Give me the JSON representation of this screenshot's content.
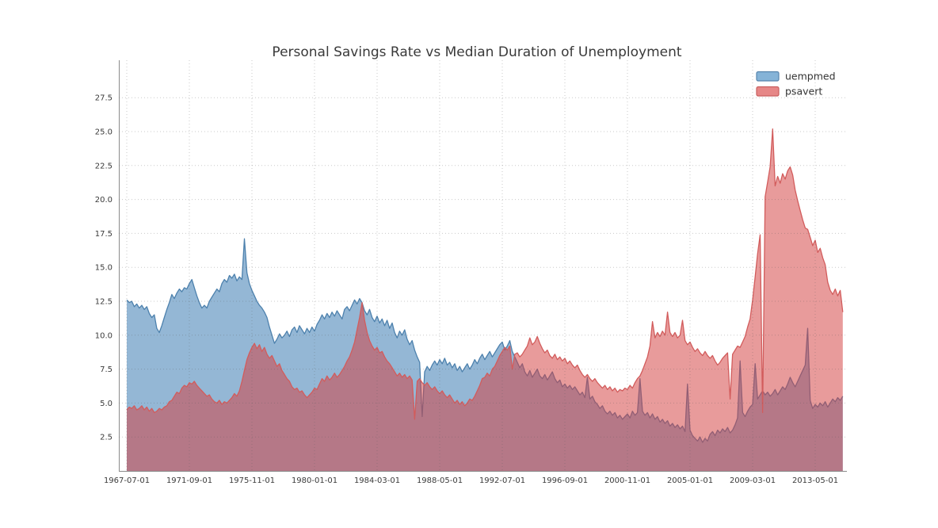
{
  "page": {
    "background": "#ffffff"
  },
  "chart_data": {
    "type": "area",
    "title": "Personal Savings Rate vs Median Duration of Unemployment",
    "xlabel": "",
    "ylabel": "",
    "x_start": "1967-07-01",
    "x_end": "2015-03-01",
    "x_step_months": 2,
    "x_tick_labels": [
      "1967-07-01",
      "1971-09-01",
      "1975-11-01",
      "1980-01-01",
      "1984-03-01",
      "1988-05-01",
      "1992-07-01",
      "1996-09-01",
      "2000-11-01",
      "2005-01-01",
      "2009-03-01",
      "2013-05-01"
    ],
    "x_tick_month_offsets": [
      0,
      50,
      100,
      150,
      200,
      250,
      300,
      350,
      400,
      450,
      500,
      550
    ],
    "y_tick_labels": [
      "2.5",
      "5.0",
      "7.5",
      "10.0",
      "12.5",
      "15.0",
      "17.5",
      "20.0",
      "22.5",
      "25.0",
      "27.5"
    ],
    "y_tick_values": [
      2.5,
      5.0,
      7.5,
      10.0,
      12.5,
      15.0,
      17.5,
      20.0,
      22.5,
      25.0,
      27.5
    ],
    "ylim": [
      0,
      30.2
    ],
    "grid": "dotted gray, both axes",
    "legend_position": "top-right",
    "colors": {
      "axis_line": "#8a8a8a",
      "grid_line": "rgba(90,90,90,0.32)",
      "title_text": "#3a3a3a",
      "tick_text": "#3a3a3a"
    },
    "legend": [
      {
        "label": "uempmed",
        "swatch_fill": "#85b3d7",
        "swatch_border": "#5785ad"
      },
      {
        "label": "psavert",
        "swatch_fill": "#e68787",
        "swatch_border": "#c95f5f"
      }
    ],
    "series": [
      {
        "name": "uempmed",
        "line_color": "#4d81ad",
        "fill_color": "rgba(58,122,178,0.54)",
        "values": [
          12.6,
          12.4,
          12.5,
          12.1,
          12.3,
          12.0,
          12.2,
          11.9,
          12.1,
          11.6,
          11.3,
          11.5,
          10.5,
          10.2,
          10.7,
          11.3,
          11.9,
          12.4,
          13.0,
          12.7,
          13.1,
          13.4,
          13.2,
          13.5,
          13.4,
          13.8,
          14.1,
          13.5,
          12.9,
          12.4,
          12.0,
          12.2,
          12.0,
          12.5,
          12.8,
          13.1,
          13.4,
          13.2,
          13.8,
          14.1,
          13.9,
          14.4,
          14.2,
          14.5,
          14.0,
          14.3,
          14.1,
          17.1,
          14.6,
          13.8,
          13.3,
          12.9,
          12.5,
          12.2,
          12.0,
          11.7,
          11.3,
          10.6,
          10.0,
          9.4,
          9.7,
          10.1,
          9.8,
          10.0,
          10.3,
          9.9,
          10.4,
          10.6,
          10.2,
          10.7,
          10.4,
          10.1,
          10.5,
          10.2,
          10.6,
          10.3,
          10.8,
          11.1,
          11.5,
          11.2,
          11.6,
          11.3,
          11.7,
          11.4,
          11.8,
          11.5,
          11.2,
          11.9,
          12.1,
          11.8,
          12.2,
          12.6,
          12.3,
          12.7,
          12.4,
          11.8,
          11.5,
          11.9,
          11.3,
          11.0,
          11.4,
          10.9,
          11.2,
          10.7,
          11.1,
          10.5,
          10.9,
          10.2,
          9.8,
          10.3,
          10.0,
          10.4,
          9.7,
          9.3,
          9.6,
          8.9,
          8.4,
          8.0,
          4.0,
          7.3,
          7.7,
          7.4,
          7.8,
          8.1,
          7.8,
          8.2,
          7.9,
          8.3,
          7.8,
          8.0,
          7.6,
          7.9,
          7.4,
          7.7,
          7.3,
          7.6,
          7.9,
          7.5,
          7.8,
          8.2,
          7.9,
          8.3,
          8.6,
          8.2,
          8.5,
          8.8,
          8.4,
          8.7,
          9.0,
          9.3,
          9.5,
          8.9,
          9.2,
          9.6,
          8.8,
          8.4,
          8.0,
          7.6,
          7.9,
          7.3,
          7.0,
          7.4,
          6.9,
          7.2,
          7.5,
          7.0,
          6.8,
          7.1,
          6.7,
          7.0,
          7.3,
          6.8,
          6.5,
          6.7,
          6.2,
          6.4,
          6.1,
          6.3,
          6.0,
          6.2,
          5.9,
          5.6,
          5.8,
          5.4,
          6.9,
          5.3,
          5.5,
          5.1,
          4.9,
          4.6,
          4.8,
          4.4,
          4.2,
          4.4,
          4.1,
          4.3,
          3.9,
          4.1,
          3.8,
          4.0,
          4.2,
          3.9,
          4.4,
          4.1,
          4.3,
          6.8,
          4.4,
          4.1,
          4.3,
          3.9,
          4.2,
          3.8,
          4.0,
          3.6,
          3.8,
          3.5,
          3.7,
          3.3,
          3.5,
          3.2,
          3.4,
          3.1,
          3.3,
          2.9,
          6.4,
          3.0,
          2.6,
          2.4,
          2.2,
          2.5,
          2.1,
          2.4,
          2.2,
          2.7,
          2.9,
          2.6,
          3.0,
          2.8,
          3.1,
          2.9,
          3.2,
          2.8,
          3.0,
          3.4,
          3.9,
          8.1,
          4.3,
          4.0,
          4.4,
          4.7,
          4.9,
          7.9,
          5.3,
          5.6,
          5.9,
          5.6,
          5.8,
          5.5,
          5.7,
          6.0,
          5.6,
          5.9,
          6.2,
          6.0,
          6.4,
          6.9,
          6.5,
          6.2,
          6.6,
          7.0,
          7.4,
          7.8,
          10.5,
          5.2,
          4.6,
          4.9,
          4.7,
          5.0,
          4.8,
          5.1,
          4.7,
          5.0,
          5.3,
          5.1,
          5.4,
          5.2,
          5.5
        ]
      },
      {
        "name": "psavert",
        "line_color": "#d25c5c",
        "fill_color": "rgba(211,64,64,0.52)",
        "values": [
          4.5,
          4.7,
          4.6,
          4.8,
          4.5,
          4.6,
          4.8,
          4.5,
          4.7,
          4.4,
          4.6,
          4.3,
          4.4,
          4.6,
          4.5,
          4.7,
          4.8,
          5.1,
          5.2,
          5.5,
          5.8,
          5.7,
          6.1,
          6.3,
          6.2,
          6.5,
          6.4,
          6.6,
          6.3,
          6.1,
          5.9,
          5.7,
          5.5,
          5.6,
          5.3,
          5.1,
          5.0,
          5.2,
          4.9,
          5.1,
          5.0,
          5.2,
          5.4,
          5.7,
          5.5,
          5.9,
          6.6,
          7.4,
          8.2,
          8.7,
          9.1,
          9.4,
          9.0,
          9.3,
          8.8,
          9.1,
          8.6,
          8.3,
          8.5,
          8.1,
          7.7,
          7.9,
          7.4,
          7.1,
          6.8,
          6.6,
          6.2,
          6.0,
          6.1,
          5.8,
          5.9,
          5.6,
          5.4,
          5.6,
          5.8,
          6.1,
          6.0,
          6.4,
          6.8,
          6.6,
          7.0,
          6.7,
          6.9,
          7.2,
          6.9,
          7.1,
          7.4,
          7.7,
          8.1,
          8.4,
          8.9,
          9.5,
          10.4,
          11.3,
          12.4,
          11.1,
          10.2,
          9.6,
          9.2,
          8.9,
          9.1,
          8.7,
          8.8,
          8.4,
          8.1,
          7.9,
          7.6,
          7.3,
          7.0,
          7.2,
          6.9,
          7.1,
          6.8,
          7.0,
          6.7,
          3.8,
          6.6,
          6.8,
          6.5,
          6.3,
          6.5,
          6.2,
          6.0,
          6.2,
          5.9,
          5.7,
          5.9,
          5.6,
          5.4,
          5.6,
          5.3,
          5.0,
          5.2,
          4.9,
          5.1,
          4.8,
          5.0,
          5.3,
          5.2,
          5.5,
          5.9,
          6.3,
          6.8,
          6.9,
          7.2,
          7.0,
          7.5,
          7.7,
          8.1,
          8.5,
          8.8,
          9.1,
          8.9,
          9.2,
          7.5,
          8.6,
          8.7,
          8.4,
          8.6,
          8.9,
          9.2,
          9.8,
          9.3,
          9.5,
          9.9,
          9.4,
          9.0,
          8.7,
          8.9,
          8.5,
          8.3,
          8.6,
          8.2,
          8.4,
          8.1,
          8.3,
          7.9,
          8.1,
          7.8,
          7.6,
          7.8,
          7.4,
          7.1,
          6.9,
          7.1,
          6.8,
          6.6,
          6.8,
          6.5,
          6.3,
          6.1,
          6.3,
          6.0,
          6.2,
          5.9,
          6.1,
          5.8,
          6.0,
          5.9,
          6.1,
          6.0,
          6.3,
          6.1,
          6.5,
          6.8,
          7.0,
          7.4,
          7.9,
          8.4,
          9.2,
          11.0,
          9.8,
          10.2,
          9.9,
          10.3,
          10.0,
          11.7,
          10.2,
          9.9,
          10.2,
          9.8,
          10.0,
          11.1,
          9.6,
          9.3,
          9.5,
          9.1,
          8.8,
          9.0,
          8.7,
          8.5,
          8.8,
          8.5,
          8.3,
          8.5,
          8.1,
          7.8,
          8.0,
          8.3,
          8.5,
          8.7,
          5.3,
          8.6,
          8.9,
          9.2,
          9.1,
          9.5,
          9.9,
          10.6,
          11.2,
          12.6,
          14.3,
          16.0,
          17.4,
          4.3,
          20.2,
          21.3,
          22.4,
          25.2,
          21.0,
          21.7,
          21.2,
          21.9,
          21.5,
          22.1,
          22.4,
          21.8,
          20.7,
          19.9,
          19.2,
          18.5,
          17.9,
          17.8,
          17.2,
          16.6,
          17.0,
          16.1,
          16.4,
          15.7,
          15.2,
          13.9,
          13.3,
          13.0,
          13.4,
          12.9,
          13.3,
          11.7
        ]
      }
    ]
  }
}
